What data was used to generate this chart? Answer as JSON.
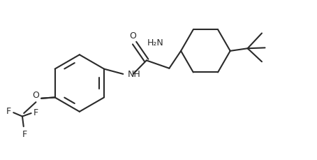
{
  "background_color": "#ffffff",
  "line_color": "#2a2a2a",
  "text_color": "#2a2a2a",
  "line_width": 1.5,
  "font_size": 9,
  "figsize": [
    4.54,
    2.29
  ],
  "dpi": 100,
  "xlim": [
    0.0,
    10.0
  ],
  "ylim": [
    0.0,
    5.0
  ]
}
